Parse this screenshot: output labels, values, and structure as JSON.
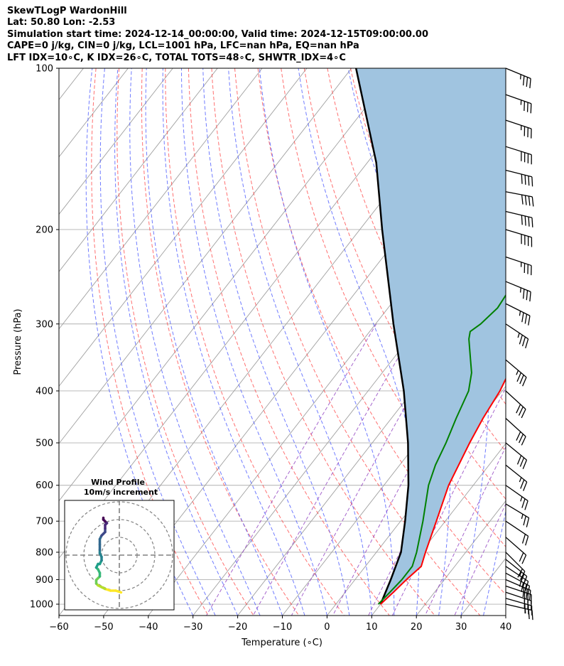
{
  "header": {
    "line1": "SkewTLogP WardonHill",
    "line2": "Lat: 50.80   Lon: -2.53",
    "line3": "Simulation start time: 2024-12-14_00:00:00, Valid time: 2024-12-15T09:00:00.00",
    "line4": "CAPE=0 j/kg, CIN=0 j/kg, LCL=1001 hPa, LFC=nan hPa, EQ=nan hPa",
    "line5": "LFT IDX=10∘C, K IDX=26∘C, TOTAL TOTS=48∘C, SHWTR_IDX=4∘C"
  },
  "chart_data": {
    "type": "line",
    "subtype": "skew-T log-P",
    "xlabel": "Temperature (∘C)",
    "ylabel": "Pressure (hPa)",
    "xlim": [
      -60,
      40
    ],
    "ylim": [
      1050,
      100
    ],
    "yscale": "log",
    "x_ticks": [
      -60,
      -50,
      -40,
      -30,
      -20,
      -10,
      0,
      10,
      20,
      30,
      40
    ],
    "x_tick_labels": [
      "−60",
      "−50",
      "−40",
      "−30",
      "−20",
      "−10",
      "0",
      "10",
      "20",
      "30",
      "40"
    ],
    "y_ticks": [
      1000,
      900,
      800,
      700,
      600,
      500,
      400,
      300,
      200,
      100
    ],
    "y_tick_labels": [
      "1000",
      "900",
      "800",
      "700",
      "600",
      "500",
      "400",
      "300",
      "200",
      "100"
    ],
    "grid": true,
    "colors": {
      "temperature": "#ff0000",
      "dewpoint": "#008000",
      "parcel": "#000000",
      "shading": "#a0c4e0",
      "dry_adiabat": "#ff4040",
      "moist_adiabat": "#4050ff",
      "mixing_ratio": "#9040c0",
      "isotherm": "#a0a0a0"
    },
    "series": [
      {
        "role": "temperature",
        "points": [
          [
            1000,
            10.0
          ],
          [
            950,
            10.8
          ],
          [
            900,
            11.5
          ],
          [
            850,
            12.5
          ],
          [
            800,
            11.0
          ],
          [
            700,
            8.0
          ],
          [
            600,
            4.5
          ],
          [
            500,
            1.8
          ],
          [
            450,
            0.5
          ],
          [
            400,
            -0.5
          ],
          [
            350,
            -2.5
          ],
          [
            320,
            -4.5
          ],
          [
            300,
            -6.5
          ],
          [
            250,
            -12.0
          ],
          [
            210,
            -16.5
          ],
          [
            200,
            -17.5
          ],
          [
            190,
            -18.5
          ],
          [
            170,
            -18.0
          ],
          [
            150,
            -17.0
          ],
          [
            130,
            -16.0
          ],
          [
            110,
            -14.0
          ],
          [
            100,
            -12.5
          ]
        ]
      },
      {
        "role": "dewpoint",
        "points": [
          [
            1000,
            9.5
          ],
          [
            950,
            10.0
          ],
          [
            900,
            10.5
          ],
          [
            850,
            10.5
          ],
          [
            800,
            9.0
          ],
          [
            700,
            5.0
          ],
          [
            600,
            0.0
          ],
          [
            550,
            -2.0
          ],
          [
            500,
            -3.5
          ],
          [
            450,
            -5.5
          ],
          [
            400,
            -7.5
          ],
          [
            370,
            -10.0
          ],
          [
            350,
            -12.5
          ],
          [
            320,
            -16.5
          ],
          [
            310,
            -17.5
          ],
          [
            300,
            -16.5
          ],
          [
            280,
            -15.5
          ],
          [
            260,
            -16.0
          ],
          [
            240,
            -17.5
          ],
          [
            220,
            -21.5
          ],
          [
            200,
            -25.5
          ],
          [
            185,
            -28.5
          ],
          [
            175,
            -28.5
          ],
          [
            165,
            -27.5
          ],
          [
            150,
            -26.0
          ],
          [
            140,
            -25.0
          ],
          [
            130,
            -24.0
          ],
          [
            120,
            -23.5
          ],
          [
            110,
            -23.0
          ],
          [
            100,
            -23.0
          ]
        ]
      },
      {
        "role": "parcel",
        "points": [
          [
            1000,
            10.0
          ],
          [
            900,
            8.0
          ],
          [
            800,
            5.5
          ],
          [
            700,
            1.0
          ],
          [
            600,
            -4.5
          ],
          [
            500,
            -12.0
          ],
          [
            400,
            -22.0
          ],
          [
            300,
            -36.0
          ],
          [
            200,
            -55.0
          ],
          [
            150,
            -68.0
          ],
          [
            100,
            -89.0
          ]
        ]
      }
    ],
    "wind_barbs": [
      {
        "p": 1000,
        "u": -13,
        "v": 3
      },
      {
        "p": 975,
        "u": -14,
        "v": 4
      },
      {
        "p": 950,
        "u": -15,
        "v": 5
      },
      {
        "p": 925,
        "u": -15,
        "v": 5
      },
      {
        "p": 900,
        "u": -14,
        "v": 6
      },
      {
        "p": 875,
        "u": -13,
        "v": 7
      },
      {
        "p": 850,
        "u": -12,
        "v": 8
      },
      {
        "p": 825,
        "u": -10,
        "v": 8
      },
      {
        "p": 800,
        "u": -8,
        "v": 8
      },
      {
        "p": 750,
        "u": -8,
        "v": 7
      },
      {
        "p": 700,
        "u": -9,
        "v": 6
      },
      {
        "p": 650,
        "u": -10,
        "v": 6
      },
      {
        "p": 600,
        "u": -10,
        "v": 7
      },
      {
        "p": 550,
        "u": -10,
        "v": 8
      },
      {
        "p": 500,
        "u": -11,
        "v": 9
      },
      {
        "p": 450,
        "u": -11,
        "v": 10
      },
      {
        "p": 400,
        "u": -12,
        "v": 11
      },
      {
        "p": 350,
        "u": -13,
        "v": 11
      },
      {
        "p": 300,
        "u": -15,
        "v": 10
      },
      {
        "p": 275,
        "u": -16,
        "v": 8
      },
      {
        "p": 250,
        "u": -17,
        "v": 7
      },
      {
        "p": 225,
        "u": -18,
        "v": 6
      },
      {
        "p": 200,
        "u": -20,
        "v": 6
      },
      {
        "p": 185,
        "u": -21,
        "v": 5
      },
      {
        "p": 170,
        "u": -21,
        "v": 4
      },
      {
        "p": 155,
        "u": -20,
        "v": 5
      },
      {
        "p": 140,
        "u": -19,
        "v": 6
      },
      {
        "p": 125,
        "u": -18,
        "v": 6
      },
      {
        "p": 112,
        "u": -17,
        "v": 6
      },
      {
        "p": 100,
        "u": -17,
        "v": 7
      }
    ],
    "inset": {
      "title_line1": "Wind Profile",
      "title_line2": "10m/s increment",
      "increment": 10,
      "rings": [
        10,
        20,
        30
      ],
      "hodograph": [
        [
          1,
          -21
        ],
        [
          -2,
          -20
        ],
        [
          -5,
          -20
        ],
        [
          -8,
          -19
        ],
        [
          -10,
          -18
        ],
        [
          -12,
          -17
        ],
        [
          -13,
          -16
        ],
        [
          -13,
          -14
        ],
        [
          -12,
          -13
        ],
        [
          -11,
          -12
        ],
        [
          -11,
          -10
        ],
        [
          -12,
          -8
        ],
        [
          -13,
          -7
        ],
        [
          -12,
          -5
        ],
        [
          -11,
          -5
        ],
        [
          -10,
          -3
        ],
        [
          -10,
          -1
        ],
        [
          -11,
          1
        ],
        [
          -11,
          3
        ],
        [
          -11,
          6
        ],
        [
          -11,
          9
        ],
        [
          -10,
          11
        ],
        [
          -9,
          12
        ],
        [
          -8,
          13
        ],
        [
          -8,
          15
        ],
        [
          -8,
          17
        ],
        [
          -7,
          18
        ],
        [
          -8,
          19
        ],
        [
          -9,
          20
        ],
        [
          -9,
          21
        ]
      ],
      "colormap": [
        "#fde725",
        "#b5de2b",
        "#6ece58",
        "#35b779",
        "#1f9e89",
        "#26828e",
        "#31688e",
        "#3e4989",
        "#482878",
        "#440154"
      ]
    }
  }
}
